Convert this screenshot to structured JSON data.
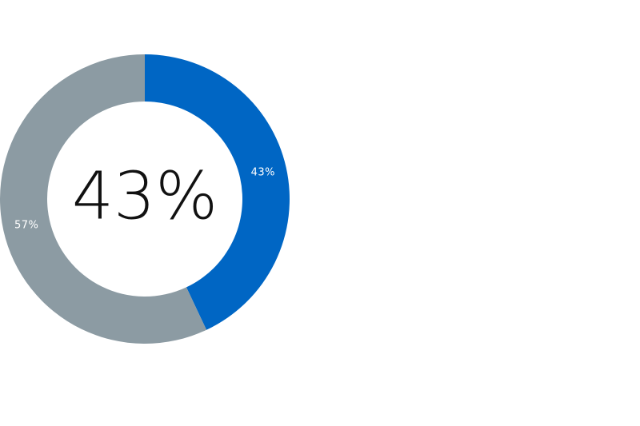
{
  "chart_data": {
    "type": "pie",
    "variant": "donut",
    "categories": [
      "",
      ""
    ],
    "values": [
      43,
      57
    ],
    "value_labels": [
      "43%",
      "57%"
    ],
    "colors": [
      "#0066c4",
      "#8c9ba3"
    ],
    "center_text": "43%",
    "title": "",
    "legend": "none"
  }
}
